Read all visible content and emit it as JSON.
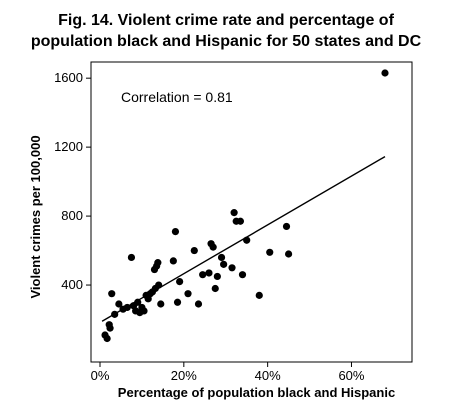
{
  "chart_data": {
    "type": "scatter",
    "title_line1": "Fig. 14. Violent crime rate and percentage of",
    "title_line2": "population black and Hispanic for 50 states and DC",
    "xlabel": "Percentage of population black and Hispanic",
    "ylabel": "Violent crimes per 100,000",
    "annotation": "Correlation = 0.81",
    "xlim": [
      0,
      70
    ],
    "ylim": [
      0,
      1720
    ],
    "x_ticks": [
      {
        "value": 0,
        "label": "0%"
      },
      {
        "value": 20,
        "label": "20%"
      },
      {
        "value": 40,
        "label": "40%"
      },
      {
        "value": 60,
        "label": "60%"
      }
    ],
    "y_ticks": [
      {
        "value": 400,
        "label": "400"
      },
      {
        "value": 800,
        "label": "800"
      },
      {
        "value": 1200,
        "label": "1200"
      },
      {
        "value": 1600,
        "label": "1600"
      }
    ],
    "grid": false,
    "legend": "none",
    "marker_color": "#000000",
    "trend_line": {
      "x0": 0.5,
      "y0": 190,
      "x1": 68,
      "y1": 1145
    },
    "points": [
      [
        1.2,
        110
      ],
      [
        1.7,
        90
      ],
      [
        2.2,
        170
      ],
      [
        2.4,
        150
      ],
      [
        2.8,
        350
      ],
      [
        3.5,
        230
      ],
      [
        4.5,
        290
      ],
      [
        5.5,
        260
      ],
      [
        6.5,
        270
      ],
      [
        7.5,
        560
      ],
      [
        8.0,
        280
      ],
      [
        8.5,
        250
      ],
      [
        9.0,
        300
      ],
      [
        9.5,
        240
      ],
      [
        10.0,
        270
      ],
      [
        10.5,
        250
      ],
      [
        11.0,
        340
      ],
      [
        11.5,
        320
      ],
      [
        12.0,
        350
      ],
      [
        12.5,
        360
      ],
      [
        13.0,
        490
      ],
      [
        13.2,
        380
      ],
      [
        13.5,
        510
      ],
      [
        13.8,
        530
      ],
      [
        14.0,
        400
      ],
      [
        14.5,
        290
      ],
      [
        17.5,
        540
      ],
      [
        18.0,
        710
      ],
      [
        18.5,
        300
      ],
      [
        19.0,
        420
      ],
      [
        21.0,
        350
      ],
      [
        22.5,
        600
      ],
      [
        23.5,
        290
      ],
      [
        24.5,
        460
      ],
      [
        26.0,
        470
      ],
      [
        26.5,
        640
      ],
      [
        27.0,
        620
      ],
      [
        27.5,
        380
      ],
      [
        28.0,
        450
      ],
      [
        29.0,
        560
      ],
      [
        29.5,
        520
      ],
      [
        31.5,
        500
      ],
      [
        32.0,
        820
      ],
      [
        32.5,
        770
      ],
      [
        33.5,
        770
      ],
      [
        34.0,
        460
      ],
      [
        35.0,
        660
      ],
      [
        38.0,
        340
      ],
      [
        40.5,
        590
      ],
      [
        44.5,
        740
      ],
      [
        45.0,
        580
      ],
      [
        68.0,
        1630
      ]
    ]
  }
}
